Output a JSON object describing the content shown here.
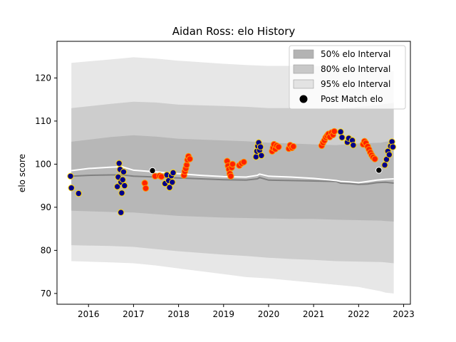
{
  "chart_data": {
    "type": "scatter",
    "title": "Aidan Ross: elo History",
    "xlabel": "",
    "ylabel": "elo score",
    "xlim": [
      2015.3,
      2023.15
    ],
    "ylim": [
      67.5,
      128.5
    ],
    "xticks": [
      2016,
      2017,
      2018,
      2019,
      2020,
      2021,
      2022,
      2023
    ],
    "yticks": [
      70,
      80,
      90,
      100,
      110,
      120
    ],
    "grid": false,
    "legend_position": "top-right",
    "legend": [
      {
        "label": "50% elo Interval",
        "kind": "band",
        "color": "#b3b3b3"
      },
      {
        "label": "80% elo Interval",
        "kind": "band",
        "color": "#c8c8c8"
      },
      {
        "label": "95% elo Interval",
        "kind": "band",
        "color": "#e3e3e3"
      },
      {
        "label": "Post Match elo",
        "kind": "marker",
        "color": "#000000"
      }
    ],
    "colors": {
      "band95": "#e3e3e3",
      "band80": "#c8c8c8",
      "band50": "#b3b3b3",
      "mean_line": "#808080",
      "white_line": "#ffffff",
      "win_fill": "#00008b",
      "win_edge": "#ffd700",
      "loss_fill": "#ff2200",
      "loss_edge": "#ff9900",
      "neutral_fill": "#000000"
    },
    "mean_series": {
      "x": [
        2015.62,
        2016.0,
        2016.5,
        2016.75,
        2017.0,
        2017.5,
        2018.0,
        2018.5,
        2019.0,
        2019.5,
        2019.75,
        2019.8,
        2020.0,
        2020.5,
        2021.0,
        2021.5,
        2021.6,
        2021.8,
        2022.0,
        2022.2,
        2022.4,
        2022.6,
        2022.78
      ],
      "y": [
        97.2,
        97.4,
        97.5,
        97.5,
        97.2,
        97.0,
        96.8,
        96.6,
        96.4,
        96.3,
        96.6,
        96.9,
        96.3,
        96.2,
        96.1,
        96.0,
        95.6,
        95.5,
        95.3,
        95.4,
        95.7,
        95.8,
        95.6
      ]
    },
    "white_series": {
      "x": [
        2015.62,
        2016.0,
        2016.5,
        2016.75,
        2017.0,
        2017.5,
        2018.0,
        2018.5,
        2019.0,
        2019.5,
        2019.75,
        2019.8,
        2020.0,
        2020.5,
        2021.0,
        2021.5,
        2021.6,
        2021.8,
        2022.0,
        2022.2,
        2022.4,
        2022.6,
        2022.78
      ],
      "y": [
        98.5,
        99.0,
        99.3,
        99.4,
        98.6,
        98.2,
        97.8,
        97.4,
        97.1,
        97.0,
        97.4,
        97.7,
        97.2,
        97.0,
        96.7,
        96.2,
        96.0,
        95.9,
        95.7,
        96.0,
        96.3,
        96.5,
        96.6
      ]
    },
    "band95": {
      "x": [
        2015.62,
        2016.5,
        2017.0,
        2017.5,
        2018.0,
        2019.0,
        2019.5,
        2020.0,
        2020.5,
        2021.0,
        2021.5,
        2022.0,
        2022.5,
        2022.6,
        2022.78
      ],
      "upper": [
        123.5,
        124.3,
        124.8,
        124.5,
        124.0,
        123.3,
        123.0,
        122.8,
        122.8,
        122.8,
        122.5,
        122.6,
        122.3,
        122.0,
        121.5
      ],
      "lower": [
        77.5,
        77.2,
        77.0,
        76.5,
        75.8,
        74.5,
        73.8,
        73.5,
        73.0,
        72.5,
        72.0,
        71.5,
        70.5,
        70.2,
        70.0
      ]
    },
    "band80": {
      "x": [
        2015.62,
        2016.5,
        2017.0,
        2017.5,
        2018.0,
        2019.0,
        2019.5,
        2020.0,
        2020.5,
        2021.0,
        2021.5,
        2022.0,
        2022.5,
        2022.6,
        2022.78
      ],
      "upper": [
        113.0,
        114.0,
        114.5,
        114.3,
        113.8,
        113.5,
        113.3,
        113.0,
        113.0,
        113.0,
        112.8,
        113.3,
        113.8,
        114.0,
        114.2
      ],
      "lower": [
        81.2,
        81.0,
        80.8,
        80.3,
        79.8,
        79.0,
        78.7,
        78.3,
        78.0,
        77.8,
        77.5,
        77.4,
        77.3,
        77.2,
        77.0
      ]
    },
    "band50": {
      "x": [
        2015.62,
        2016.5,
        2017.0,
        2017.5,
        2018.0,
        2019.0,
        2019.5,
        2020.0,
        2020.5,
        2021.0,
        2021.5,
        2022.0,
        2022.5,
        2022.6,
        2022.78
      ],
      "upper": [
        105.2,
        106.3,
        106.7,
        106.4,
        105.9,
        105.5,
        105.3,
        105.0,
        104.8,
        104.6,
        104.4,
        104.8,
        105.0,
        105.2,
        105.3
      ],
      "lower": [
        89.2,
        88.9,
        88.8,
        88.4,
        88.0,
        87.6,
        87.5,
        87.4,
        87.3,
        87.3,
        87.1,
        87.0,
        86.9,
        86.8,
        86.7
      ]
    },
    "points": [
      {
        "x": 2015.6,
        "y": 97.2,
        "result": "win"
      },
      {
        "x": 2015.62,
        "y": 94.5,
        "result": "win"
      },
      {
        "x": 2015.78,
        "y": 93.2,
        "result": "win"
      },
      {
        "x": 2016.64,
        "y": 94.8,
        "result": "win"
      },
      {
        "x": 2016.66,
        "y": 97.0,
        "result": "win"
      },
      {
        "x": 2016.68,
        "y": 100.2,
        "result": "win"
      },
      {
        "x": 2016.7,
        "y": 98.8,
        "result": "win"
      },
      {
        "x": 2016.72,
        "y": 95.8,
        "result": "win"
      },
      {
        "x": 2016.74,
        "y": 93.3,
        "result": "win"
      },
      {
        "x": 2016.76,
        "y": 96.4,
        "result": "win"
      },
      {
        "x": 2016.78,
        "y": 98.2,
        "result": "win"
      },
      {
        "x": 2016.8,
        "y": 95.0,
        "result": "win"
      },
      {
        "x": 2016.72,
        "y": 88.8,
        "result": "win"
      },
      {
        "x": 2017.25,
        "y": 95.6,
        "result": "loss"
      },
      {
        "x": 2017.27,
        "y": 94.4,
        "result": "loss"
      },
      {
        "x": 2017.42,
        "y": 98.5,
        "result": "neutral"
      },
      {
        "x": 2017.48,
        "y": 97.2,
        "result": "loss"
      },
      {
        "x": 2017.58,
        "y": 97.3,
        "result": "loss"
      },
      {
        "x": 2017.62,
        "y": 97.1,
        "result": "loss"
      },
      {
        "x": 2017.7,
        "y": 95.5,
        "result": "win"
      },
      {
        "x": 2017.74,
        "y": 97.5,
        "result": "win"
      },
      {
        "x": 2017.78,
        "y": 96.2,
        "result": "win"
      },
      {
        "x": 2017.8,
        "y": 94.6,
        "result": "win"
      },
      {
        "x": 2017.84,
        "y": 97.3,
        "result": "win"
      },
      {
        "x": 2017.86,
        "y": 95.8,
        "result": "win"
      },
      {
        "x": 2017.88,
        "y": 98.0,
        "result": "win"
      },
      {
        "x": 2018.12,
        "y": 97.4,
        "result": "loss"
      },
      {
        "x": 2018.14,
        "y": 98.3,
        "result": "loss"
      },
      {
        "x": 2018.16,
        "y": 99.0,
        "result": "loss"
      },
      {
        "x": 2018.18,
        "y": 99.8,
        "result": "loss"
      },
      {
        "x": 2018.2,
        "y": 101.0,
        "result": "loss"
      },
      {
        "x": 2018.22,
        "y": 101.8,
        "result": "loss"
      },
      {
        "x": 2018.25,
        "y": 101.2,
        "result": "loss"
      },
      {
        "x": 2019.08,
        "y": 100.7,
        "result": "loss"
      },
      {
        "x": 2019.1,
        "y": 99.6,
        "result": "loss"
      },
      {
        "x": 2019.12,
        "y": 98.8,
        "result": "loss"
      },
      {
        "x": 2019.14,
        "y": 97.8,
        "result": "loss"
      },
      {
        "x": 2019.16,
        "y": 97.2,
        "result": "loss"
      },
      {
        "x": 2019.18,
        "y": 99.2,
        "result": "loss"
      },
      {
        "x": 2019.2,
        "y": 100.0,
        "result": "loss"
      },
      {
        "x": 2019.35,
        "y": 99.7,
        "result": "loss"
      },
      {
        "x": 2019.4,
        "y": 100.2,
        "result": "loss"
      },
      {
        "x": 2019.45,
        "y": 100.5,
        "result": "loss"
      },
      {
        "x": 2019.72,
        "y": 101.7,
        "result": "win"
      },
      {
        "x": 2019.74,
        "y": 103.0,
        "result": "win"
      },
      {
        "x": 2019.76,
        "y": 104.2,
        "result": "win"
      },
      {
        "x": 2019.78,
        "y": 105.0,
        "result": "win"
      },
      {
        "x": 2019.8,
        "y": 103.2,
        "result": "win"
      },
      {
        "x": 2019.82,
        "y": 104.0,
        "result": "win"
      },
      {
        "x": 2019.84,
        "y": 102.0,
        "result": "win"
      },
      {
        "x": 2020.08,
        "y": 103.0,
        "result": "loss"
      },
      {
        "x": 2020.1,
        "y": 103.8,
        "result": "loss"
      },
      {
        "x": 2020.12,
        "y": 104.6,
        "result": "loss"
      },
      {
        "x": 2020.15,
        "y": 103.5,
        "result": "loss"
      },
      {
        "x": 2020.18,
        "y": 104.3,
        "result": "loss"
      },
      {
        "x": 2020.22,
        "y": 104.0,
        "result": "loss"
      },
      {
        "x": 2020.45,
        "y": 103.6,
        "result": "loss"
      },
      {
        "x": 2020.48,
        "y": 104.4,
        "result": "loss"
      },
      {
        "x": 2020.52,
        "y": 103.8,
        "result": "loss"
      },
      {
        "x": 2020.55,
        "y": 104.1,
        "result": "loss"
      },
      {
        "x": 2021.18,
        "y": 104.3,
        "result": "loss"
      },
      {
        "x": 2021.21,
        "y": 105.0,
        "result": "loss"
      },
      {
        "x": 2021.24,
        "y": 105.5,
        "result": "loss"
      },
      {
        "x": 2021.27,
        "y": 106.2,
        "result": "loss"
      },
      {
        "x": 2021.3,
        "y": 106.6,
        "result": "loss"
      },
      {
        "x": 2021.33,
        "y": 107.0,
        "result": "loss"
      },
      {
        "x": 2021.36,
        "y": 106.3,
        "result": "loss"
      },
      {
        "x": 2021.4,
        "y": 107.3,
        "result": "loss"
      },
      {
        "x": 2021.43,
        "y": 106.8,
        "result": "loss"
      },
      {
        "x": 2021.46,
        "y": 107.6,
        "result": "loss"
      },
      {
        "x": 2021.6,
        "y": 107.5,
        "result": "win"
      },
      {
        "x": 2021.63,
        "y": 106.2,
        "result": "win"
      },
      {
        "x": 2021.75,
        "y": 105.1,
        "result": "win"
      },
      {
        "x": 2021.78,
        "y": 106.0,
        "result": "win"
      },
      {
        "x": 2021.86,
        "y": 105.5,
        "result": "win"
      },
      {
        "x": 2021.88,
        "y": 104.4,
        "result": "win"
      },
      {
        "x": 2022.1,
        "y": 104.6,
        "result": "loss"
      },
      {
        "x": 2022.13,
        "y": 105.3,
        "result": "loss"
      },
      {
        "x": 2022.16,
        "y": 104.9,
        "result": "loss"
      },
      {
        "x": 2022.2,
        "y": 104.1,
        "result": "loss"
      },
      {
        "x": 2022.23,
        "y": 103.4,
        "result": "loss"
      },
      {
        "x": 2022.26,
        "y": 102.7,
        "result": "loss"
      },
      {
        "x": 2022.29,
        "y": 102.1,
        "result": "loss"
      },
      {
        "x": 2022.32,
        "y": 101.6,
        "result": "loss"
      },
      {
        "x": 2022.36,
        "y": 101.2,
        "result": "loss"
      },
      {
        "x": 2022.45,
        "y": 98.6,
        "result": "neutral"
      },
      {
        "x": 2022.58,
        "y": 99.8,
        "result": "win"
      },
      {
        "x": 2022.62,
        "y": 101.1,
        "result": "win"
      },
      {
        "x": 2022.65,
        "y": 103.0,
        "result": "win"
      },
      {
        "x": 2022.68,
        "y": 102.2,
        "result": "win"
      },
      {
        "x": 2022.71,
        "y": 104.2,
        "result": "win"
      },
      {
        "x": 2022.74,
        "y": 105.2,
        "result": "win"
      },
      {
        "x": 2022.76,
        "y": 104.0,
        "result": "win"
      }
    ]
  }
}
